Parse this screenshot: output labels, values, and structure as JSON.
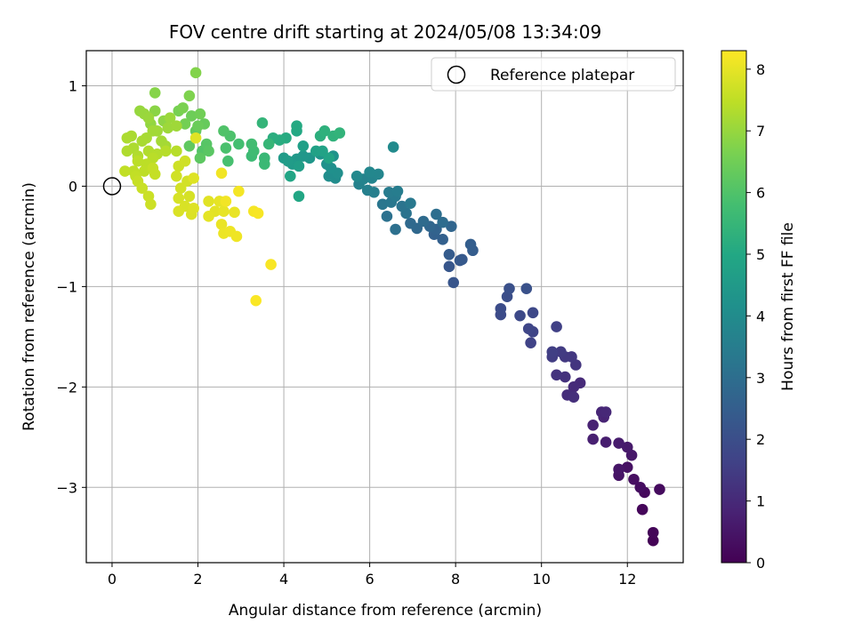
{
  "chart_data": {
    "type": "scatter",
    "title": "FOV centre drift starting at 2024/05/08 13:34:09",
    "xlabel": "Angular distance from reference (arcmin)",
    "ylabel": "Rotation from reference (arcmin)",
    "xlim": [
      -0.6,
      13.3
    ],
    "ylim": [
      -3.75,
      1.35
    ],
    "xticks": [
      0,
      2,
      4,
      6,
      8,
      10,
      12
    ],
    "yticks": [
      -3,
      -2,
      -1,
      0,
      1
    ],
    "grid": true,
    "legend": {
      "placement": "top-right",
      "entries": [
        "Reference platepar"
      ]
    },
    "colorbar": {
      "label": "Hours from first FF file",
      "colormap": "viridis",
      "range": [
        0,
        8.3
      ],
      "ticks": [
        0,
        1,
        2,
        3,
        4,
        5,
        6,
        7,
        8
      ]
    },
    "reference_point": {
      "x": 0,
      "y": 0,
      "label": "Reference platepar"
    },
    "points": [
      {
        "x": 12.6,
        "y": -3.53,
        "h": 0.05
      },
      {
        "x": 12.6,
        "y": -3.45,
        "h": 0.1
      },
      {
        "x": 12.35,
        "y": -3.22,
        "h": 0.15
      },
      {
        "x": 12.4,
        "y": -3.05,
        "h": 0.2
      },
      {
        "x": 12.75,
        "y": -3.02,
        "h": 0.25
      },
      {
        "x": 12.3,
        "y": -3.0,
        "h": 0.3
      },
      {
        "x": 12.15,
        "y": -2.92,
        "h": 0.35
      },
      {
        "x": 12.0,
        "y": -2.8,
        "h": 0.4
      },
      {
        "x": 11.8,
        "y": -2.88,
        "h": 0.45
      },
      {
        "x": 11.8,
        "y": -2.82,
        "h": 0.5
      },
      {
        "x": 12.1,
        "y": -2.68,
        "h": 0.55
      },
      {
        "x": 12.0,
        "y": -2.6,
        "h": 0.6
      },
      {
        "x": 11.8,
        "y": -2.56,
        "h": 0.65
      },
      {
        "x": 11.5,
        "y": -2.55,
        "h": 0.7
      },
      {
        "x": 11.2,
        "y": -2.52,
        "h": 0.75
      },
      {
        "x": 11.2,
        "y": -2.38,
        "h": 0.8
      },
      {
        "x": 11.45,
        "y": -2.3,
        "h": 0.85
      },
      {
        "x": 11.4,
        "y": -2.25,
        "h": 0.9
      },
      {
        "x": 11.5,
        "y": -2.25,
        "h": 0.95
      },
      {
        "x": 10.9,
        "y": -1.96,
        "h": 1.0
      },
      {
        "x": 10.75,
        "y": -2.0,
        "h": 1.05
      },
      {
        "x": 10.6,
        "y": -2.08,
        "h": 1.1
      },
      {
        "x": 10.75,
        "y": -2.1,
        "h": 1.15
      },
      {
        "x": 10.55,
        "y": -1.9,
        "h": 1.2
      },
      {
        "x": 10.35,
        "y": -1.88,
        "h": 1.25
      },
      {
        "x": 10.8,
        "y": -1.78,
        "h": 1.3
      },
      {
        "x": 10.7,
        "y": -1.7,
        "h": 1.35
      },
      {
        "x": 10.55,
        "y": -1.7,
        "h": 1.4
      },
      {
        "x": 10.45,
        "y": -1.65,
        "h": 1.45
      },
      {
        "x": 10.25,
        "y": -1.7,
        "h": 1.5
      },
      {
        "x": 10.25,
        "y": -1.65,
        "h": 1.55
      },
      {
        "x": 10.35,
        "y": -1.4,
        "h": 1.6
      },
      {
        "x": 9.75,
        "y": -1.56,
        "h": 1.65
      },
      {
        "x": 9.8,
        "y": -1.45,
        "h": 1.7
      },
      {
        "x": 9.7,
        "y": -1.42,
        "h": 1.75
      },
      {
        "x": 9.8,
        "y": -1.26,
        "h": 1.8
      },
      {
        "x": 9.5,
        "y": -1.29,
        "h": 1.85
      },
      {
        "x": 9.05,
        "y": -1.28,
        "h": 1.9
      },
      {
        "x": 9.05,
        "y": -1.22,
        "h": 1.95
      },
      {
        "x": 9.2,
        "y": -1.1,
        "h": 2.0
      },
      {
        "x": 9.25,
        "y": -1.02,
        "h": 2.05
      },
      {
        "x": 9.65,
        "y": -1.02,
        "h": 2.1
      },
      {
        "x": 7.95,
        "y": -0.96,
        "h": 2.2
      },
      {
        "x": 7.85,
        "y": -0.8,
        "h": 2.25
      },
      {
        "x": 8.1,
        "y": -0.74,
        "h": 2.3
      },
      {
        "x": 8.15,
        "y": -0.73,
        "h": 2.35
      },
      {
        "x": 7.85,
        "y": -0.68,
        "h": 2.4
      },
      {
        "x": 8.4,
        "y": -0.64,
        "h": 2.45
      },
      {
        "x": 8.35,
        "y": -0.58,
        "h": 2.5
      },
      {
        "x": 7.7,
        "y": -0.53,
        "h": 2.55
      },
      {
        "x": 7.5,
        "y": -0.48,
        "h": 2.6
      },
      {
        "x": 7.55,
        "y": -0.43,
        "h": 2.65
      },
      {
        "x": 7.9,
        "y": -0.4,
        "h": 2.7
      },
      {
        "x": 7.4,
        "y": -0.4,
        "h": 2.75
      },
      {
        "x": 7.1,
        "y": -0.42,
        "h": 2.8
      },
      {
        "x": 6.95,
        "y": -0.37,
        "h": 2.85
      },
      {
        "x": 7.25,
        "y": -0.35,
        "h": 2.9
      },
      {
        "x": 7.7,
        "y": -0.36,
        "h": 2.95
      },
      {
        "x": 7.55,
        "y": -0.28,
        "h": 3.0
      },
      {
        "x": 6.6,
        "y": -0.43,
        "h": 3.05
      },
      {
        "x": 6.4,
        "y": -0.3,
        "h": 3.1
      },
      {
        "x": 6.85,
        "y": -0.27,
        "h": 3.15
      },
      {
        "x": 6.75,
        "y": -0.2,
        "h": 3.2
      },
      {
        "x": 6.3,
        "y": -0.18,
        "h": 3.25
      },
      {
        "x": 6.5,
        "y": -0.16,
        "h": 3.3
      },
      {
        "x": 6.95,
        "y": -0.17,
        "h": 3.35
      },
      {
        "x": 6.6,
        "y": -0.1,
        "h": 3.4
      },
      {
        "x": 6.45,
        "y": -0.06,
        "h": 3.45
      },
      {
        "x": 6.65,
        "y": -0.05,
        "h": 3.5
      },
      {
        "x": 6.1,
        "y": -0.06,
        "h": 3.55
      },
      {
        "x": 5.95,
        "y": -0.04,
        "h": 3.6
      },
      {
        "x": 5.75,
        "y": 0.02,
        "h": 3.65
      },
      {
        "x": 5.85,
        "y": 0.07,
        "h": 3.7
      },
      {
        "x": 6.05,
        "y": 0.08,
        "h": 3.75
      },
      {
        "x": 6.2,
        "y": 0.12,
        "h": 3.8
      },
      {
        "x": 6.0,
        "y": 0.14,
        "h": 3.85
      },
      {
        "x": 5.7,
        "y": 0.1,
        "h": 3.9
      },
      {
        "x": 6.55,
        "y": 0.39,
        "h": 3.95
      },
      {
        "x": 5.2,
        "y": 0.08,
        "h": 4.0
      },
      {
        "x": 5.05,
        "y": 0.1,
        "h": 4.05
      },
      {
        "x": 5.25,
        "y": 0.13,
        "h": 4.1
      },
      {
        "x": 5.1,
        "y": 0.18,
        "h": 4.15
      },
      {
        "x": 5.0,
        "y": 0.22,
        "h": 4.2
      },
      {
        "x": 5.15,
        "y": 0.3,
        "h": 4.25
      },
      {
        "x": 4.85,
        "y": 0.32,
        "h": 4.3
      },
      {
        "x": 4.6,
        "y": 0.28,
        "h": 4.35
      },
      {
        "x": 4.45,
        "y": 0.3,
        "h": 4.4
      },
      {
        "x": 4.3,
        "y": 0.27,
        "h": 4.45
      },
      {
        "x": 4.2,
        "y": 0.22,
        "h": 4.5
      },
      {
        "x": 4.0,
        "y": 0.28,
        "h": 4.55
      },
      {
        "x": 4.1,
        "y": 0.25,
        "h": 4.6
      },
      {
        "x": 4.35,
        "y": 0.2,
        "h": 4.65
      },
      {
        "x": 4.45,
        "y": 0.4,
        "h": 4.7
      },
      {
        "x": 4.75,
        "y": 0.35,
        "h": 4.75
      },
      {
        "x": 4.9,
        "y": 0.35,
        "h": 4.8
      },
      {
        "x": 5.05,
        "y": 0.28,
        "h": 4.85
      },
      {
        "x": 4.15,
        "y": 0.1,
        "h": 4.9
      },
      {
        "x": 4.35,
        "y": -0.1,
        "h": 4.95
      },
      {
        "x": 4.3,
        "y": 0.55,
        "h": 5.0
      },
      {
        "x": 4.3,
        "y": 0.6,
        "h": 5.05
      },
      {
        "x": 4.05,
        "y": 0.48,
        "h": 5.1
      },
      {
        "x": 3.9,
        "y": 0.46,
        "h": 5.15
      },
      {
        "x": 3.75,
        "y": 0.48,
        "h": 5.2
      },
      {
        "x": 4.85,
        "y": 0.5,
        "h": 5.25
      },
      {
        "x": 4.95,
        "y": 0.55,
        "h": 5.3
      },
      {
        "x": 5.15,
        "y": 0.5,
        "h": 5.35
      },
      {
        "x": 5.3,
        "y": 0.53,
        "h": 5.4
      },
      {
        "x": 3.5,
        "y": 0.63,
        "h": 5.45
      },
      {
        "x": 3.65,
        "y": 0.42,
        "h": 5.5
      },
      {
        "x": 3.55,
        "y": 0.28,
        "h": 5.55
      },
      {
        "x": 3.55,
        "y": 0.22,
        "h": 5.6
      },
      {
        "x": 3.25,
        "y": 0.3,
        "h": 5.65
      },
      {
        "x": 3.3,
        "y": 0.35,
        "h": 5.7
      },
      {
        "x": 3.25,
        "y": 0.42,
        "h": 5.75
      },
      {
        "x": 2.95,
        "y": 0.42,
        "h": 5.8
      },
      {
        "x": 2.7,
        "y": 0.25,
        "h": 5.85
      },
      {
        "x": 2.65,
        "y": 0.38,
        "h": 5.9
      },
      {
        "x": 2.75,
        "y": 0.5,
        "h": 5.95
      },
      {
        "x": 2.6,
        "y": 0.55,
        "h": 6.0
      },
      {
        "x": 2.1,
        "y": 0.35,
        "h": 6.05
      },
      {
        "x": 2.2,
        "y": 0.42,
        "h": 6.1
      },
      {
        "x": 2.25,
        "y": 0.35,
        "h": 6.15
      },
      {
        "x": 2.05,
        "y": 0.28,
        "h": 6.2
      },
      {
        "x": 1.8,
        "y": 0.4,
        "h": 6.25
      },
      {
        "x": 1.95,
        "y": 0.55,
        "h": 6.3
      },
      {
        "x": 2.15,
        "y": 0.62,
        "h": 6.35
      },
      {
        "x": 2.0,
        "y": 0.6,
        "h": 6.4
      },
      {
        "x": 1.85,
        "y": 0.7,
        "h": 6.45
      },
      {
        "x": 2.05,
        "y": 0.72,
        "h": 6.5
      },
      {
        "x": 1.7,
        "y": 0.62,
        "h": 6.55
      },
      {
        "x": 1.55,
        "y": 0.75,
        "h": 6.6
      },
      {
        "x": 1.65,
        "y": 0.78,
        "h": 6.65
      },
      {
        "x": 1.8,
        "y": 0.9,
        "h": 6.7
      },
      {
        "x": 1.95,
        "y": 1.13,
        "h": 6.75
      },
      {
        "x": 1.0,
        "y": 0.93,
        "h": 6.8
      },
      {
        "x": 1.0,
        "y": 0.75,
        "h": 6.85
      },
      {
        "x": 1.2,
        "y": 0.65,
        "h": 6.9
      },
      {
        "x": 0.9,
        "y": 0.62,
        "h": 6.95
      },
      {
        "x": 0.65,
        "y": 0.75,
        "h": 7.0
      },
      {
        "x": 0.75,
        "y": 0.72,
        "h": 7.02
      },
      {
        "x": 0.85,
        "y": 0.68,
        "h": 7.04
      },
      {
        "x": 1.35,
        "y": 0.68,
        "h": 7.06
      },
      {
        "x": 1.3,
        "y": 0.58,
        "h": 7.08
      },
      {
        "x": 1.5,
        "y": 0.6,
        "h": 7.1
      },
      {
        "x": 1.05,
        "y": 0.55,
        "h": 7.12
      },
      {
        "x": 0.95,
        "y": 0.55,
        "h": 7.14
      },
      {
        "x": 1.15,
        "y": 0.45,
        "h": 7.16
      },
      {
        "x": 1.25,
        "y": 0.4,
        "h": 7.18
      },
      {
        "x": 0.8,
        "y": 0.48,
        "h": 7.2
      },
      {
        "x": 0.7,
        "y": 0.45,
        "h": 7.22
      },
      {
        "x": 0.45,
        "y": 0.5,
        "h": 7.24
      },
      {
        "x": 0.35,
        "y": 0.48,
        "h": 7.26
      },
      {
        "x": 0.5,
        "y": 0.38,
        "h": 7.28
      },
      {
        "x": 0.35,
        "y": 0.35,
        "h": 7.3
      },
      {
        "x": 0.6,
        "y": 0.3,
        "h": 7.32
      },
      {
        "x": 0.85,
        "y": 0.35,
        "h": 7.34
      },
      {
        "x": 1.05,
        "y": 0.32,
        "h": 7.36
      },
      {
        "x": 1.25,
        "y": 0.35,
        "h": 7.38
      },
      {
        "x": 1.5,
        "y": 0.35,
        "h": 7.4
      },
      {
        "x": 0.95,
        "y": 0.28,
        "h": 7.42
      },
      {
        "x": 0.6,
        "y": 0.25,
        "h": 7.44
      },
      {
        "x": 0.8,
        "y": 0.22,
        "h": 7.46
      },
      {
        "x": 0.75,
        "y": 0.15,
        "h": 7.48
      },
      {
        "x": 0.5,
        "y": 0.15,
        "h": 7.5
      },
      {
        "x": 0.3,
        "y": 0.15,
        "h": 7.52
      },
      {
        "x": 0.55,
        "y": 0.1,
        "h": 7.54
      },
      {
        "x": 0.95,
        "y": 0.18,
        "h": 7.56
      },
      {
        "x": 1.0,
        "y": 0.12,
        "h": 7.58
      },
      {
        "x": 0.6,
        "y": 0.05,
        "h": 7.6
      },
      {
        "x": 0.7,
        "y": -0.02,
        "h": 7.62
      },
      {
        "x": 0.85,
        "y": -0.1,
        "h": 7.64
      },
      {
        "x": 0.9,
        "y": -0.18,
        "h": 7.66
      },
      {
        "x": 1.55,
        "y": 0.2,
        "h": 7.68
      },
      {
        "x": 1.7,
        "y": 0.25,
        "h": 7.7
      },
      {
        "x": 1.5,
        "y": 0.1,
        "h": 7.72
      },
      {
        "x": 1.75,
        "y": 0.05,
        "h": 7.74
      },
      {
        "x": 1.6,
        "y": -0.02,
        "h": 7.76
      },
      {
        "x": 1.8,
        "y": -0.1,
        "h": 7.78
      },
      {
        "x": 1.55,
        "y": -0.12,
        "h": 7.8
      },
      {
        "x": 1.7,
        "y": -0.2,
        "h": 7.82
      },
      {
        "x": 1.55,
        "y": -0.25,
        "h": 7.84
      },
      {
        "x": 1.85,
        "y": -0.28,
        "h": 7.86
      },
      {
        "x": 1.9,
        "y": -0.22,
        "h": 7.88
      },
      {
        "x": 1.9,
        "y": 0.08,
        "h": 7.9
      },
      {
        "x": 1.95,
        "y": 0.48,
        "h": 7.92
      },
      {
        "x": 2.25,
        "y": -0.15,
        "h": 7.94
      },
      {
        "x": 2.4,
        "y": -0.25,
        "h": 7.96
      },
      {
        "x": 2.25,
        "y": -0.3,
        "h": 7.98
      },
      {
        "x": 2.5,
        "y": -0.15,
        "h": 8.0
      },
      {
        "x": 2.6,
        "y": -0.25,
        "h": 8.02
      },
      {
        "x": 2.85,
        "y": -0.26,
        "h": 8.04
      },
      {
        "x": 2.55,
        "y": -0.38,
        "h": 8.06
      },
      {
        "x": 2.6,
        "y": -0.47,
        "h": 8.08
      },
      {
        "x": 2.75,
        "y": -0.45,
        "h": 8.1
      },
      {
        "x": 2.9,
        "y": -0.5,
        "h": 8.12
      },
      {
        "x": 2.55,
        "y": 0.13,
        "h": 8.14
      },
      {
        "x": 2.65,
        "y": -0.15,
        "h": 8.16
      },
      {
        "x": 2.95,
        "y": -0.05,
        "h": 8.18
      },
      {
        "x": 3.3,
        "y": -0.25,
        "h": 8.2
      },
      {
        "x": 3.4,
        "y": -0.27,
        "h": 8.22
      },
      {
        "x": 3.7,
        "y": -0.78,
        "h": 8.24
      },
      {
        "x": 3.35,
        "y": -1.14,
        "h": 8.26
      }
    ]
  }
}
